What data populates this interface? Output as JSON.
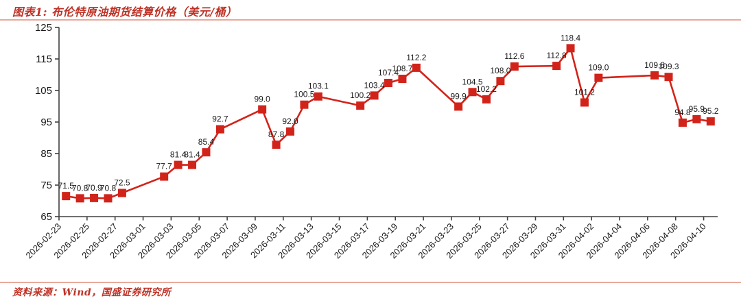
{
  "header": {
    "title": "图表1: 布伦特原油期货结算价格（美元/桶）"
  },
  "footer": {
    "source": "资料来源：Wind，国盛证券研究所"
  },
  "colors": {
    "series_red": "#d2231a",
    "heading_red": "#be3226",
    "separator": "#e9a89b",
    "axis": "#404040",
    "tick_text": "#1a1a1a",
    "data_label_text": "#1a1a1a"
  },
  "chart_data": {
    "type": "line",
    "title": "图表1: 布伦特原油期货结算价格（美元/桶）",
    "marker": "square",
    "grid": false,
    "legend": "none",
    "data_labels": true,
    "ylim": [
      65,
      125
    ],
    "yticks": [
      65,
      75,
      85,
      95,
      105,
      115,
      125
    ],
    "x_start": "2026-02-23",
    "x_end": "2026-04-10",
    "x_tick_labels": [
      "2026-02-23",
      "2026-02-25",
      "2026-02-27",
      "2026-03-01",
      "2026-03-03",
      "2026-03-05",
      "2026-03-07",
      "2026-03-09",
      "2026-03-11",
      "2026-03-13",
      "2026-03-15",
      "2026-03-17",
      "2026-03-19",
      "2026-03-21",
      "2026-03-23",
      "2026-03-25",
      "2026-03-27",
      "2026-03-29",
      "2026-03-31",
      "2026-04-02",
      "2026-04-04",
      "2026-04-06",
      "2026-04-08",
      "2026-04-10"
    ],
    "series": [
      {
        "points": [
          {
            "date": "2026-02-23",
            "value": 71.5
          },
          {
            "date": "2026-02-24",
            "value": 70.8
          },
          {
            "date": "2026-02-25",
            "value": 70.9
          },
          {
            "date": "2026-02-26",
            "value": 70.8
          },
          {
            "date": "2026-02-27",
            "value": 72.5
          },
          {
            "date": "2026-03-02",
            "value": 77.7
          },
          {
            "date": "2026-03-03",
            "value": 81.4
          },
          {
            "date": "2026-03-04",
            "value": 81.4
          },
          {
            "date": "2026-03-05",
            "value": 85.4
          },
          {
            "date": "2026-03-06",
            "value": 92.7
          },
          {
            "date": "2026-03-09",
            "value": 99.0
          },
          {
            "date": "2026-03-10",
            "value": 87.8
          },
          {
            "date": "2026-03-11",
            "value": 92.0
          },
          {
            "date": "2026-03-12",
            "value": 100.5
          },
          {
            "date": "2026-03-13",
            "value": 103.1
          },
          {
            "date": "2026-03-16",
            "value": 100.2
          },
          {
            "date": "2026-03-17",
            "value": 103.4
          },
          {
            "date": "2026-03-18",
            "value": 107.4
          },
          {
            "date": "2026-03-19",
            "value": 108.7
          },
          {
            "date": "2026-03-20",
            "value": 112.2
          },
          {
            "date": "2026-03-23",
            "value": 99.9
          },
          {
            "date": "2026-03-24",
            "value": 104.5
          },
          {
            "date": "2026-03-25",
            "value": 102.2
          },
          {
            "date": "2026-03-26",
            "value": 108.0
          },
          {
            "date": "2026-03-27",
            "value": 112.6
          },
          {
            "date": "2026-03-30",
            "value": 112.8
          },
          {
            "date": "2026-03-31",
            "value": 118.4
          },
          {
            "date": "2026-04-01",
            "value": 101.2
          },
          {
            "date": "2026-04-02",
            "value": 109.0
          },
          {
            "date": "2026-04-06",
            "value": 109.8
          },
          {
            "date": "2026-04-07",
            "value": 109.3
          },
          {
            "date": "2026-04-08",
            "value": 94.8
          },
          {
            "date": "2026-04-09",
            "value": 95.9
          },
          {
            "date": "2026-04-10",
            "value": 95.2
          }
        ]
      }
    ]
  }
}
